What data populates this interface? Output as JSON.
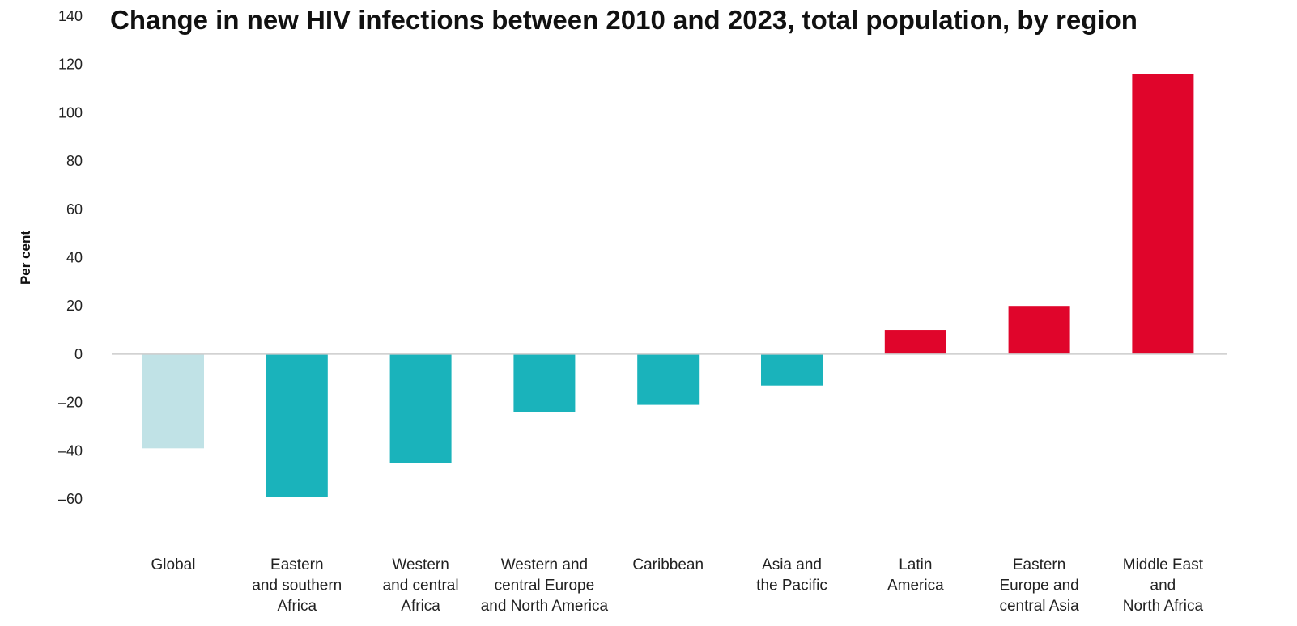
{
  "chart_data": {
    "type": "bar",
    "title": "Change in new HIV infections between 2010 and 2023, total population, by region",
    "xlabel": "",
    "ylabel": "Per cent",
    "ylim": [
      -60,
      140
    ],
    "yticks": [
      140,
      120,
      100,
      80,
      60,
      40,
      20,
      0,
      -20,
      -40,
      -60
    ],
    "ytick_labels": [
      "140",
      "120",
      "100",
      "80",
      "60",
      "40",
      "20",
      "0",
      "–20",
      "–40",
      "–60"
    ],
    "grid": false,
    "categories": [
      "Global",
      "Eastern and southern Africa",
      "Western and central Africa",
      "Western and central Europe and North America",
      "Caribbean",
      "Asia and the Pacific",
      "Latin America",
      "Eastern Europe and central Asia",
      "Middle East and North Africa"
    ],
    "category_lines": [
      [
        "Global"
      ],
      [
        "Eastern",
        "and southern",
        "Africa"
      ],
      [
        "Western",
        "and central",
        "Africa"
      ],
      [
        "Western and",
        "central Europe",
        "and North America"
      ],
      [
        "Caribbean"
      ],
      [
        "Asia and",
        "the Pacific"
      ],
      [
        "Latin",
        "America"
      ],
      [
        "Eastern",
        "Europe and",
        "central Asia"
      ],
      [
        "Middle East",
        "and",
        "North Africa"
      ]
    ],
    "values": [
      -39,
      -59,
      -45,
      -24,
      -21,
      -13,
      10,
      20,
      116
    ],
    "colors": [
      "#c0e2e6",
      "#1ab3bb",
      "#1ab3bb",
      "#1ab3bb",
      "#1ab3bb",
      "#1ab3bb",
      "#e0052b",
      "#e0052b",
      "#e0052b"
    ],
    "zero_line_color": "#cccccc"
  }
}
